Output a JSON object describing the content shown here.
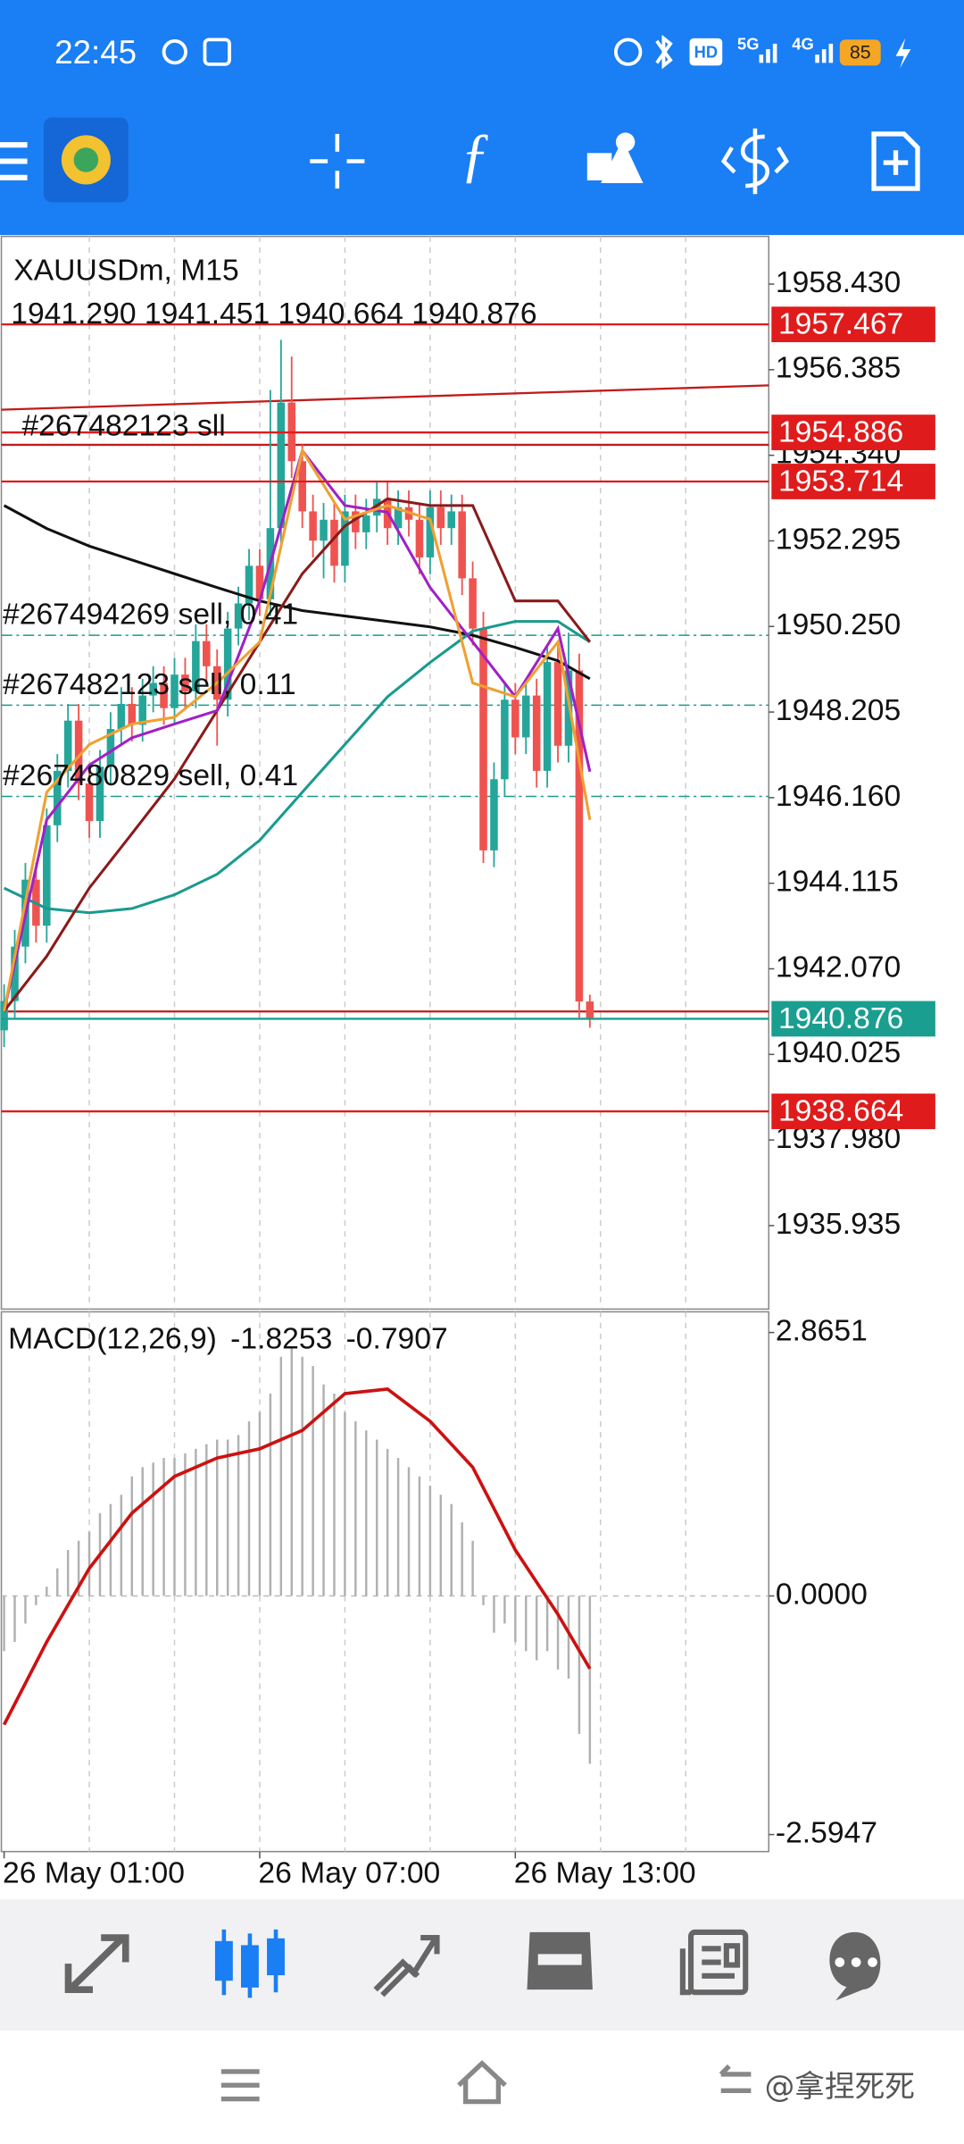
{
  "status_bar": {
    "time": "22:45",
    "hd": "HD",
    "network_1": "5G",
    "network_2": "4G",
    "battery": "85"
  },
  "chart": {
    "symbol": "XAUUSDm, M15",
    "quote": "1941.290 1941.451 1940.664 1940.876",
    "sl_label": "#267482123 sll",
    "ylim": [
      1933.94,
      1959.57
    ],
    "yticks": [
      {
        "value": 1958.43,
        "label": "1958.430"
      },
      {
        "value": 1956.385,
        "label": "1956.385"
      },
      {
        "value": 1954.34,
        "label": "1954.340"
      },
      {
        "value": 1952.295,
        "label": "1952.295"
      },
      {
        "value": 1950.25,
        "label": "1950.250"
      },
      {
        "value": 1948.205,
        "label": "1948.205"
      },
      {
        "value": 1946.16,
        "label": "1946.160"
      },
      {
        "value": 1944.115,
        "label": "1944.115"
      },
      {
        "value": 1942.07,
        "label": "1942.070"
      },
      {
        "value": 1940.025,
        "label": "1940.025"
      },
      {
        "value": 1937.98,
        "label": "1937.980"
      },
      {
        "value": 1935.935,
        "label": "1935.935"
      }
    ],
    "colors": {
      "up": "#26a69a",
      "down": "#ef5350"
    },
    "candles": {
      "open": [
        1940.6,
        1941.3,
        1942.6,
        1944.2,
        1943.1,
        1945.5,
        1946.8,
        1948.0,
        1946.5,
        1945.6,
        1946.9,
        1947.8,
        1948.4,
        1947.9,
        1948.6,
        1948.9,
        1948.3,
        1949.1,
        1948.7,
        1949.9,
        1949.3,
        1948.5,
        1950.2,
        1950.8,
        1951.7,
        1950.9,
        1952.6,
        1955.6,
        1954.2,
        1953.0,
        1952.3,
        1952.8,
        1951.7,
        1953.0,
        1952.5,
        1952.9,
        1953.3,
        1952.6,
        1953.1,
        1952.8,
        1951.9,
        1953.1,
        1952.6,
        1953.0,
        1951.4,
        1950.2,
        1944.9,
        1946.6,
        1948.5,
        1947.6,
        1948.6,
        1946.8,
        1949.4,
        1947.4,
        1949.2,
        1941.29
      ],
      "high": [
        1941.7,
        1943.0,
        1944.6,
        1944.6,
        1945.9,
        1947.2,
        1948.4,
        1948.4,
        1946.9,
        1947.3,
        1948.2,
        1948.8,
        1948.8,
        1949.0,
        1949.3,
        1949.3,
        1949.5,
        1949.5,
        1950.3,
        1950.3,
        1949.7,
        1950.6,
        1951.2,
        1952.1,
        1952.1,
        1955.9,
        1957.1,
        1956.7,
        1954.6,
        1953.4,
        1953.2,
        1953.2,
        1953.4,
        1953.4,
        1953.3,
        1953.7,
        1953.7,
        1953.5,
        1953.5,
        1953.2,
        1953.5,
        1953.5,
        1953.4,
        1953.4,
        1951.8,
        1950.6,
        1947.0,
        1948.9,
        1948.9,
        1949.0,
        1949.0,
        1949.8,
        1949.8,
        1950.1,
        1949.6,
        1941.451
      ],
      "low": [
        1940.2,
        1940.9,
        1942.2,
        1942.7,
        1942.7,
        1945.1,
        1946.4,
        1946.1,
        1945.2,
        1945.2,
        1946.5,
        1947.4,
        1947.5,
        1947.5,
        1948.2,
        1947.9,
        1947.9,
        1948.3,
        1948.3,
        1948.9,
        1947.4,
        1948.1,
        1949.8,
        1950.4,
        1950.5,
        1950.5,
        1952.2,
        1953.8,
        1952.6,
        1951.9,
        1951.4,
        1951.3,
        1951.3,
        1952.1,
        1952.1,
        1952.5,
        1952.2,
        1952.2,
        1952.4,
        1951.5,
        1951.5,
        1952.2,
        1952.2,
        1951.0,
        1949.8,
        1944.6,
        1944.5,
        1946.2,
        1947.2,
        1947.2,
        1946.4,
        1946.4,
        1947.0,
        1947.0,
        1940.9,
        1940.664
      ],
      "close": [
        1941.3,
        1942.6,
        1944.2,
        1943.1,
        1945.5,
        1946.8,
        1948.0,
        1946.5,
        1945.6,
        1946.9,
        1947.8,
        1948.4,
        1947.9,
        1948.6,
        1948.9,
        1948.3,
        1949.1,
        1948.7,
        1949.9,
        1949.3,
        1948.5,
        1950.2,
        1950.8,
        1951.7,
        1950.9,
        1952.6,
        1955.6,
        1954.2,
        1953.0,
        1952.3,
        1952.8,
        1951.7,
        1953.0,
        1952.5,
        1952.9,
        1953.3,
        1952.6,
        1953.1,
        1952.8,
        1951.9,
        1953.1,
        1952.6,
        1953.0,
        1951.4,
        1950.2,
        1944.9,
        1946.6,
        1948.5,
        1947.6,
        1948.6,
        1946.8,
        1949.4,
        1947.4,
        1949.2,
        1941.29,
        1940.876
      ]
    },
    "moving_averages": {
      "x": [
        0,
        4,
        8,
        12,
        16,
        20,
        24,
        28,
        32,
        36,
        40,
        44,
        48,
        52,
        55
      ],
      "series": [
        {
          "color": "#111111",
          "values": [
            1953.14,
            1952.59,
            1952.17,
            1951.84,
            1951.51,
            1951.18,
            1950.86,
            1950.63,
            1950.5,
            1950.37,
            1950.24,
            1950.04,
            1949.75,
            1949.43,
            1949.0
          ]
        },
        {
          "color": "#1a9a8e",
          "values": [
            1944.0,
            1943.51,
            1943.41,
            1943.51,
            1943.84,
            1944.33,
            1945.14,
            1946.29,
            1947.43,
            1948.57,
            1949.39,
            1950.14,
            1950.37,
            1950.37,
            1949.88
          ]
        },
        {
          "color": "#8b1a1a",
          "values": [
            1941.06,
            1942.37,
            1944.0,
            1945.3,
            1946.61,
            1948.24,
            1949.88,
            1951.51,
            1952.65,
            1953.3,
            1953.14,
            1953.14,
            1950.86,
            1950.86,
            1949.88
          ]
        },
        {
          "color": "#a020c8",
          "values": [
            1941.06,
            1945.63,
            1946.94,
            1947.59,
            1947.92,
            1948.24,
            1950.86,
            1954.45,
            1953.14,
            1952.98,
            1951.18,
            1949.88,
            1948.57,
            1950.2,
            1946.78
          ]
        },
        {
          "color": "#f0a030",
          "values": [
            1941.06,
            1946.29,
            1947.43,
            1947.92,
            1948.08,
            1948.9,
            1949.88,
            1954.45,
            1952.81,
            1953.14,
            1952.81,
            1948.9,
            1948.57,
            1949.88,
            1945.63
          ]
        }
      ]
    },
    "trendline": [
      1955.43,
      1956.01
    ],
    "levels": [
      {
        "value": 1957.467,
        "label": "1957.467",
        "color": "#e01b1b"
      },
      {
        "value": 1954.886,
        "label": "1954.886",
        "color": "#e01b1b"
      },
      {
        "value": 1953.714,
        "label": "1953.714",
        "color": "#e01b1b"
      },
      {
        "value": 1940.876,
        "label": "1940.876",
        "color": "#1a9e8f"
      },
      {
        "value": 1938.664,
        "label": "1938.664",
        "color": "#e01b1b"
      }
    ],
    "other_levels": [
      1954.59,
      1941.05
    ],
    "orders": [
      {
        "label": "#267494269 sell, 0.41",
        "price": 1950.04
      },
      {
        "label": "#267482123 sell, 0.11",
        "price": 1948.37
      },
      {
        "label": "#267480829 sell, 0.41",
        "price": 1946.19
      }
    ]
  },
  "macd": {
    "label": "MACD(12,26,9)",
    "ylim": [
      -2.78,
      3.09
    ],
    "yticks": [
      2.8651,
      {
        "value": 0,
        "label": "0.0000"
      },
      -2.5947
    ],
    "histogram": [
      -0.6,
      -0.5,
      -0.3,
      -0.1,
      0.1,
      0.3,
      0.5,
      0.6,
      0.7,
      0.9,
      1.0,
      1.1,
      1.3,
      1.4,
      1.45,
      1.5,
      1.5,
      1.55,
      1.6,
      1.65,
      1.7,
      1.7,
      1.75,
      1.9,
      2.0,
      2.2,
      2.6,
      2.7,
      2.6,
      2.5,
      2.3,
      2.2,
      2.0,
      1.9,
      1.8,
      1.7,
      1.6,
      1.5,
      1.4,
      1.3,
      1.2,
      1.1,
      1.0,
      0.8,
      0.6,
      -0.1,
      -0.4,
      -0.3,
      -0.5,
      -0.6,
      -0.7,
      -0.6,
      -0.8,
      -0.9,
      -1.5,
      -1.8253
    ],
    "signal": {
      "color": "#cc1111",
      "x": [
        0,
        4,
        8,
        12,
        16,
        20,
        24,
        28,
        32,
        36,
        40,
        44,
        48,
        52,
        55
      ],
      "values": [
        -1.4,
        -0.5,
        0.3,
        0.9,
        1.3,
        1.5,
        1.6,
        1.8,
        2.2,
        2.25,
        1.9,
        1.4,
        0.5,
        -0.2,
        -0.7907
      ]
    }
  },
  "time_axis": [
    {
      "index": 0,
      "label": "26 May 01:00"
    },
    {
      "index": 24,
      "label": "26 May 07:00"
    },
    {
      "index": 48,
      "label": "26 May 13:00"
    }
  ],
  "watermark": "@拿捏死死"
}
